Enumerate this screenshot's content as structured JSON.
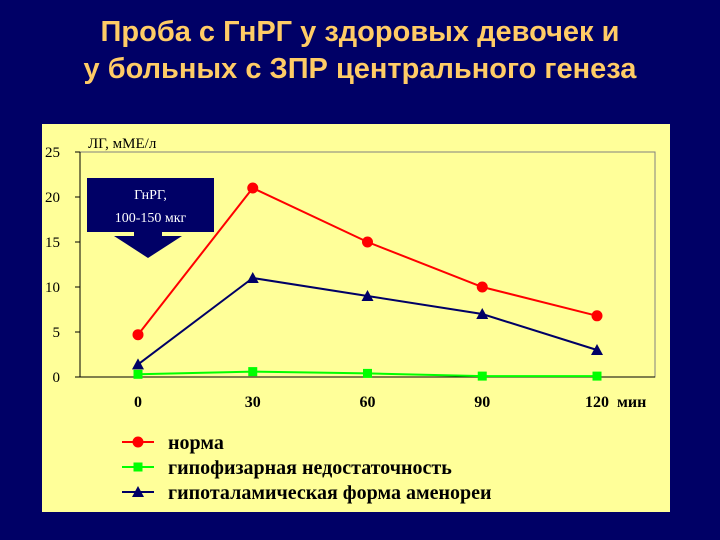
{
  "slide": {
    "title_line1": "Проба с ГнРГ у здоровых девочек и",
    "title_line2": "у больных с ЗПР центрального генеза"
  },
  "colors": {
    "background": "#000066",
    "title": "#ffcc66",
    "panel": "#ffff99",
    "callout": "#000066",
    "callout_text": "#ffffff"
  },
  "chart_data": {
    "type": "line",
    "title": "",
    "ylabel": "ЛГ, мМЕ/л",
    "xlabel": "",
    "x_unit": "мин",
    "x": [
      0,
      30,
      60,
      90,
      120
    ],
    "x_tick_labels": [
      "0",
      "30",
      "60",
      "90",
      "120"
    ],
    "y_ticks": [
      0,
      5,
      10,
      15,
      20,
      25
    ],
    "ylim": [
      0,
      25
    ],
    "grid": false,
    "legend_position": "bottom",
    "series": [
      {
        "name": "норма",
        "color": "#ff0000",
        "marker": "circle",
        "values": [
          4.7,
          21,
          15,
          10,
          6.8
        ]
      },
      {
        "name": "гипофизарная недостаточность",
        "color": "#00ff00",
        "marker": "square",
        "values": [
          0.3,
          0.6,
          0.4,
          0.1,
          0.1
        ]
      },
      {
        "name": "гипоталамическая форма аменореи",
        "color": "#000066",
        "marker": "triangle",
        "values": [
          1.4,
          11,
          9,
          7,
          3
        ]
      }
    ],
    "annotation": {
      "line1": "ГнРГ,",
      "line2": "100-150 мкг",
      "x": 0
    }
  }
}
